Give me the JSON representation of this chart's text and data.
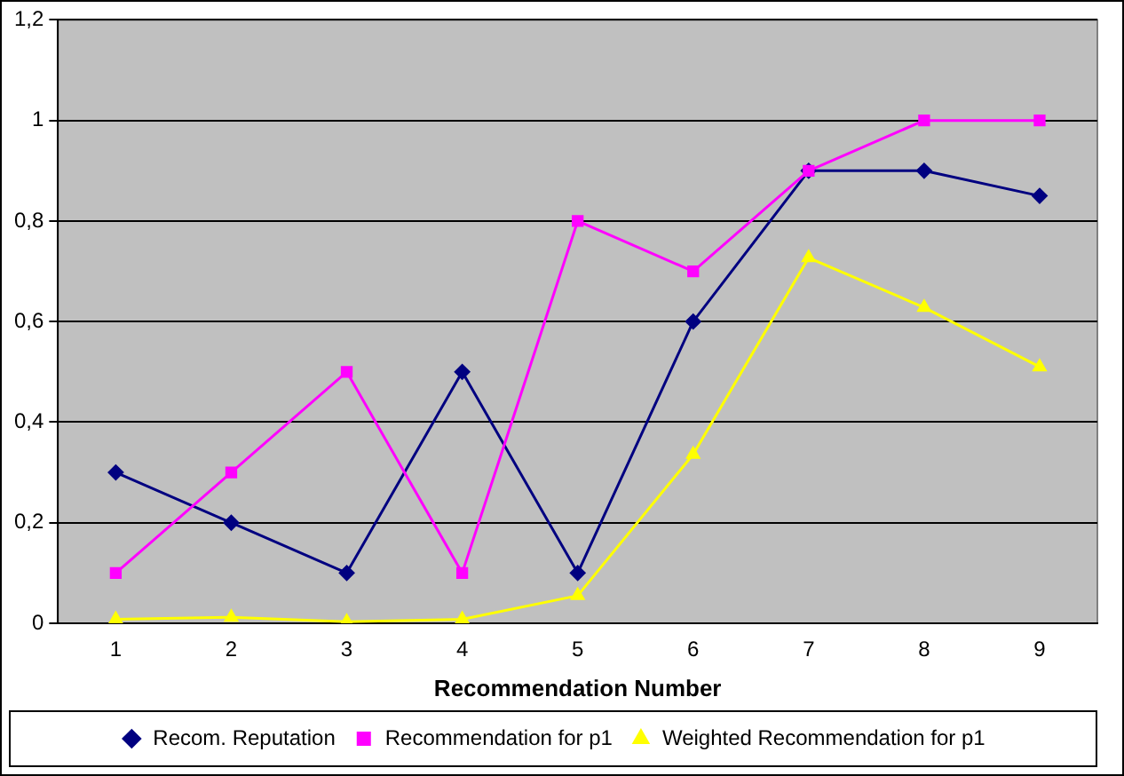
{
  "chart_data": {
    "type": "line",
    "xlabel": "Recommendation Number",
    "categories": [
      "1",
      "2",
      "3",
      "4",
      "5",
      "6",
      "7",
      "8",
      "9"
    ],
    "series": [
      {
        "name": "Recom. Reputation",
        "color": "#000080",
        "marker": "diamond",
        "values": [
          0.3,
          0.2,
          0.1,
          0.5,
          0.1,
          0.6,
          0.9,
          0.9,
          0.85
        ]
      },
      {
        "name": "Recommendation for p1",
        "color": "#ff00ff",
        "marker": "square",
        "values": [
          0.1,
          0.3,
          0.5,
          0.1,
          0.8,
          0.7,
          0.9,
          1.0,
          1.0
        ]
      },
      {
        "name": "Weighted Recommendation for p1",
        "color": "#ffff00",
        "marker": "triangle",
        "values": [
          0.008,
          0.012,
          0.003,
          0.008,
          0.055,
          0.336,
          0.727,
          0.628,
          0.51
        ]
      }
    ],
    "ylim": [
      0,
      1.2
    ],
    "yticks": [
      0,
      {
        "value": 0.2,
        "label": "0,2"
      },
      {
        "value": 0.4,
        "label": "0,4"
      },
      {
        "value": 0.6,
        "label": "0,6"
      },
      {
        "value": 0.8,
        "label": "0,8"
      },
      1,
      {
        "value": 1.2,
        "label": "1,2"
      }
    ],
    "grid": "y",
    "legend": "bottom",
    "line_style": "solid"
  }
}
